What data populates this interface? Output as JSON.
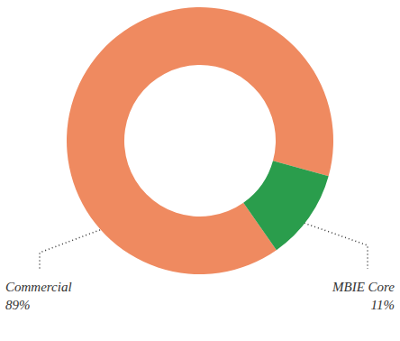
{
  "chart_data": {
    "type": "pie",
    "categories": [
      "Commercial",
      "MBIE Core"
    ],
    "values": [
      89,
      11
    ],
    "value_labels": [
      "89%",
      "11%"
    ],
    "colors": [
      "#ef8a60",
      "#2a9d4c"
    ],
    "data_labels": true
  }
}
